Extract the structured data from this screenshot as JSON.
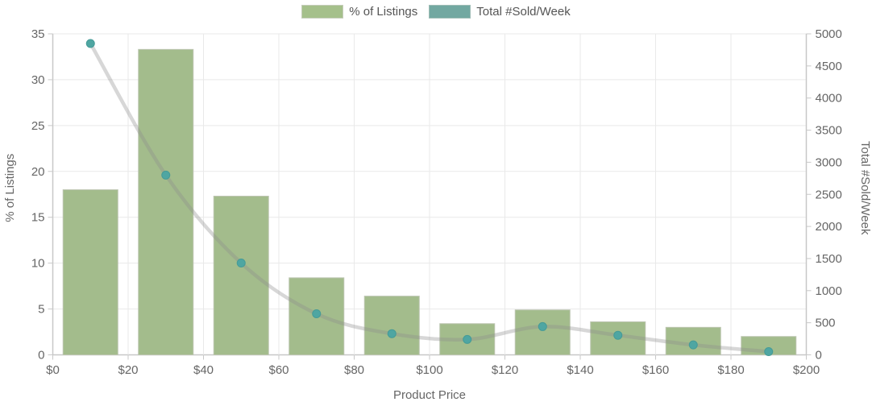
{
  "legend": {
    "items": [
      {
        "label": "% of Listings"
      },
      {
        "label": "Total #Sold/Week"
      }
    ]
  },
  "colors": {
    "bar_fill": "#a3bc8c",
    "bar_border": "#bcc5b0",
    "legend_listings_swatch": "#a5c08b",
    "legend_sold_swatch": "#72a8a1",
    "point_fill": "#4fa6a2",
    "point_border": "#459b97",
    "line_stroke": "rgba(140,140,140,0.35)",
    "grid": "#e9e9e9",
    "axis_line": "#c8c8c8",
    "tick_text": "#666666",
    "axis_title_text": "#666666"
  },
  "chart_data": {
    "type": "bar+line",
    "title": "",
    "xlabel": "Product Price",
    "x_range": [
      0,
      200
    ],
    "x_ticks": [
      "$0",
      "$20",
      "$40",
      "$60",
      "$80",
      "$100",
      "$120",
      "$140",
      "$160",
      "$180",
      "$200"
    ],
    "x_tick_values": [
      0,
      20,
      40,
      60,
      80,
      100,
      120,
      140,
      160,
      180,
      200
    ],
    "x_values": [
      10,
      30,
      50,
      70,
      90,
      110,
      130,
      150,
      170,
      190
    ],
    "series": [
      {
        "name": "% of Listings",
        "type": "bar",
        "y_axis": "left",
        "values": [
          18,
          33.3,
          17.3,
          8.4,
          6.4,
          3.4,
          4.9,
          3.6,
          3,
          2
        ]
      },
      {
        "name": "Total #Sold/Week",
        "type": "line",
        "y_axis": "right",
        "values": [
          4850,
          2800,
          1430,
          640,
          330,
          240,
          440,
          305,
          155,
          50
        ]
      }
    ],
    "left_axis": {
      "label": "% of Listings",
      "range": [
        0,
        35
      ],
      "ticks": [
        0,
        5,
        10,
        15,
        20,
        25,
        30,
        35
      ]
    },
    "right_axis": {
      "label": "Total #Sold/Week",
      "range": [
        0,
        5000
      ],
      "ticks": [
        0,
        500,
        1000,
        1500,
        2000,
        2500,
        3000,
        3500,
        4000,
        4500,
        5000
      ]
    },
    "grid": true,
    "legend_position": "top"
  }
}
